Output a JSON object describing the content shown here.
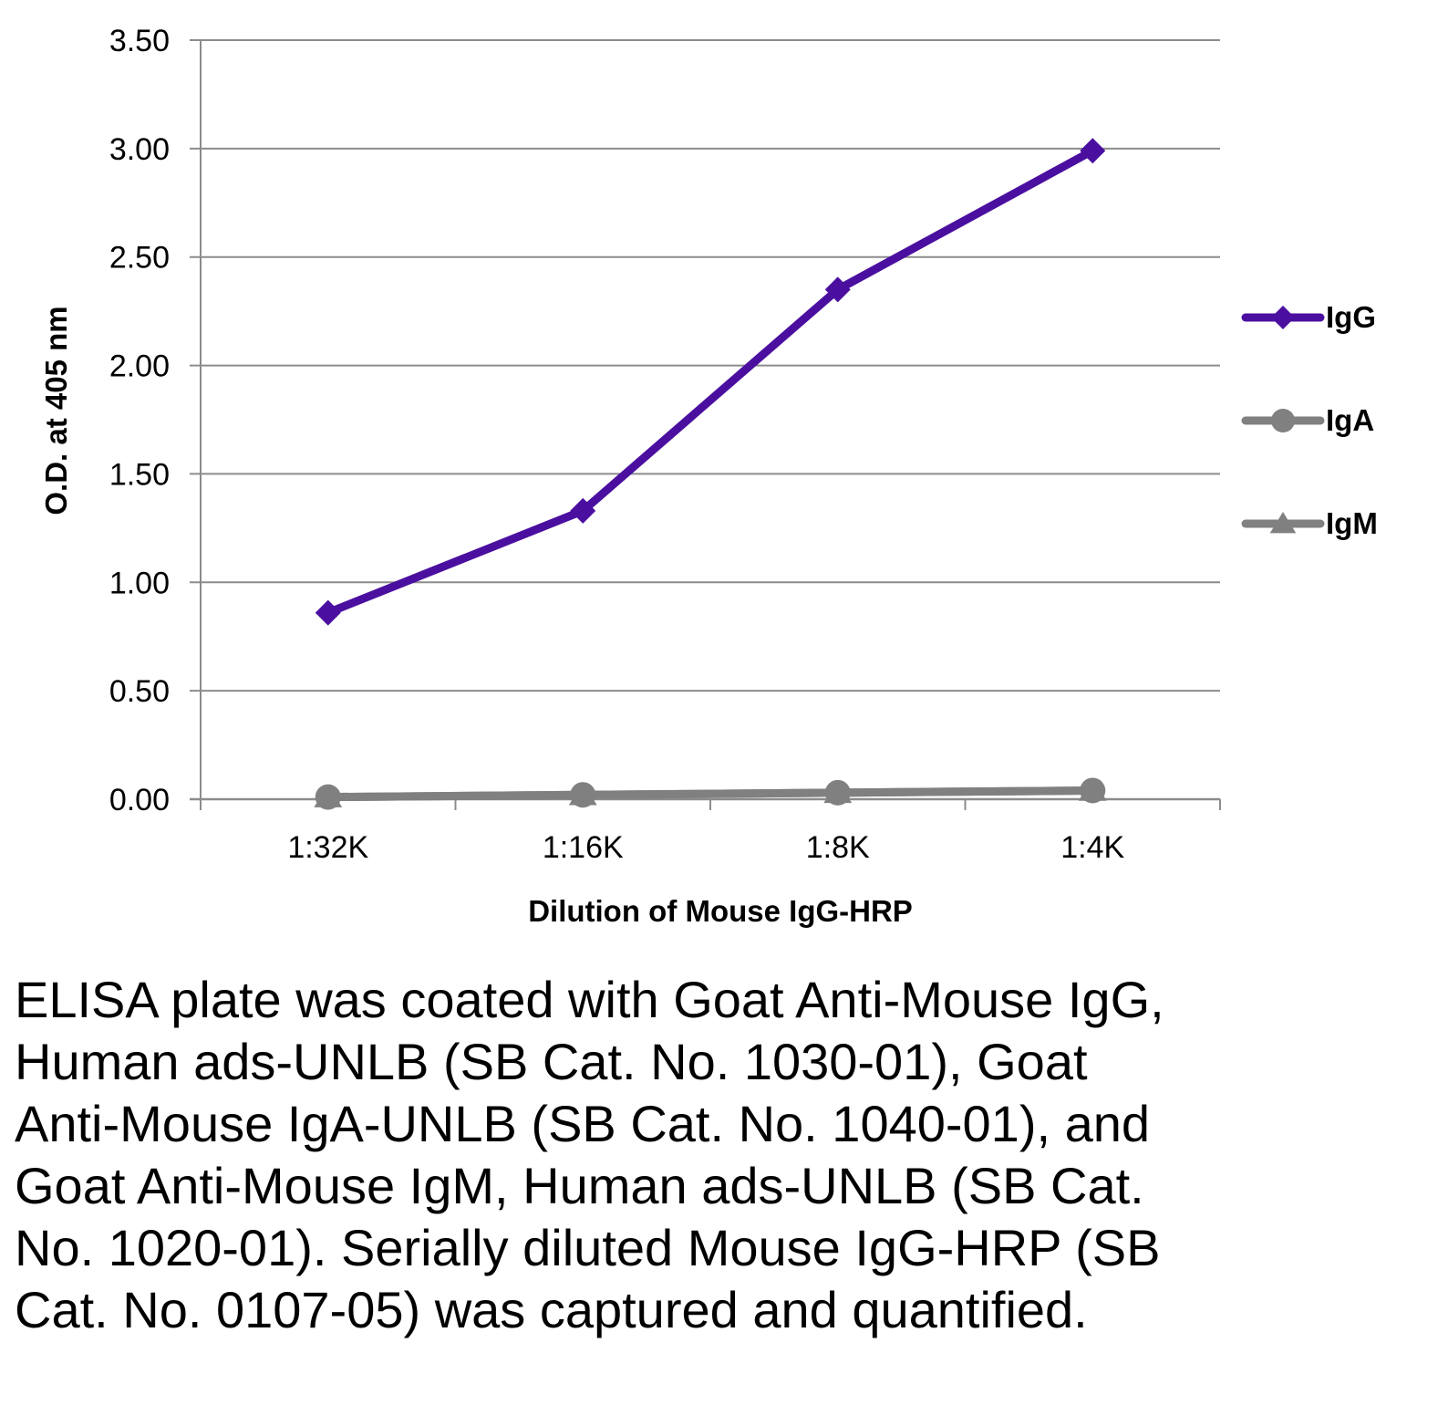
{
  "chart_data": {
    "type": "line",
    "title": "",
    "xlabel": "Dilution of Mouse IgG-HRP",
    "ylabel": "O.D. at 405 nm",
    "categories": [
      "1:32K",
      "1:16K",
      "1:8K",
      "1:4K"
    ],
    "ylim": [
      0,
      3.5
    ],
    "yticks": [
      "0.00",
      "0.50",
      "1.00",
      "1.50",
      "2.00",
      "2.50",
      "3.00",
      "3.50"
    ],
    "grid": true,
    "legend_position": "right",
    "series": [
      {
        "name": "IgG",
        "values": [
          0.86,
          1.33,
          2.35,
          2.99
        ],
        "color": "#4b0fa0",
        "marker": "diamond"
      },
      {
        "name": "IgA",
        "values": [
          0.01,
          0.02,
          0.03,
          0.04
        ],
        "color": "#808080",
        "marker": "circle"
      },
      {
        "name": "IgM",
        "values": [
          0.01,
          0.02,
          0.03,
          0.04
        ],
        "color": "#808080",
        "marker": "triangle"
      }
    ]
  },
  "caption": "ELISA plate was coated with Goat Anti-Mouse IgG, Human ads-UNLB (SB Cat. No. 1030-01), Goat Anti-Mouse IgA-UNLB (SB Cat. No. 1040-01), and Goat Anti-Mouse IgM, Human ads-UNLB (SB Cat. No. 1020-01).  Serially diluted Mouse IgG-HRP (SB Cat. No. 0107-05) was captured and quantified."
}
